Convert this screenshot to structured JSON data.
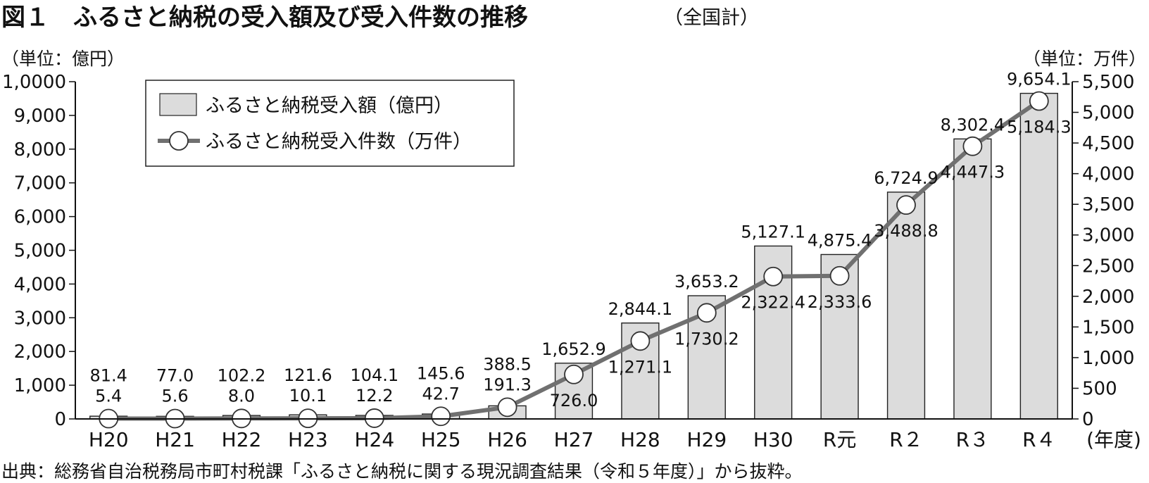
{
  "title": {
    "main": "図１　ふるさと納税の受入額及び受入件数の推移",
    "sub": "（全国計）"
  },
  "source": "出典：総務省自治税務局市町村税課「ふるさと納税に関する現況調査結果（令和５年度）」から抜粋。",
  "chart_data": {
    "type": "bar",
    "categories": [
      "H20",
      "H21",
      "H22",
      "H23",
      "H24",
      "H25",
      "H26",
      "H27",
      "H28",
      "H29",
      "H30",
      "R元",
      "R２",
      "R３",
      "R４"
    ],
    "x_suffix": "(年度)",
    "series": [
      {
        "name": "ふるさと納税受入額（億円）",
        "type": "bar",
        "axis": "left",
        "values": [
          81.4,
          77.0,
          102.2,
          121.6,
          104.1,
          145.6,
          388.5,
          1652.9,
          2844.1,
          3653.2,
          5127.1,
          4875.4,
          6724.9,
          8302.4,
          9654.1
        ],
        "labels": [
          "81.4",
          "77.0",
          "102.2",
          "121.6",
          "104.1",
          "145.6",
          "388.5",
          "1,652.9",
          "2,844.1",
          "3,653.2",
          "5,127.1",
          "4,875.4",
          "6,724.9",
          "8,302.4",
          "9,654.1"
        ]
      },
      {
        "name": "ふるさと納税受入件数（万件）",
        "type": "line",
        "axis": "right",
        "values": [
          5.4,
          5.6,
          8.0,
          10.1,
          12.2,
          42.7,
          191.3,
          726.0,
          1271.1,
          1730.2,
          2322.4,
          2333.6,
          3488.8,
          4447.3,
          5184.3
        ],
        "labels": [
          "5.4",
          "5.6",
          "8.0",
          "10.1",
          "12.2",
          "42.7",
          "191.3",
          "726.0",
          "1,271.1",
          "1,730.2",
          "2,322.4",
          "2,333.6",
          "3,488.8",
          "4,447.3",
          "5,184.3"
        ]
      }
    ],
    "left_axis": {
      "unit": "（単位：億円）",
      "ylim": [
        0,
        10000
      ],
      "ticks": [
        0,
        1000,
        2000,
        3000,
        4000,
        5000,
        6000,
        7000,
        8000,
        9000,
        10000
      ],
      "tick_labels": [
        "0",
        "1,000",
        "2,000",
        "3,000",
        "4,000",
        "5,000",
        "6,000",
        "7,000",
        "8,000",
        "9,000",
        "1,0000"
      ]
    },
    "right_axis": {
      "unit": "（単位：万件）",
      "ylim": [
        0,
        5500
      ],
      "ticks": [
        0,
        500,
        1000,
        1500,
        2000,
        2500,
        3000,
        3500,
        4000,
        4500,
        5000,
        5500
      ],
      "tick_labels": [
        "0",
        "500",
        "1,000",
        "1,500",
        "2,000",
        "2,500",
        "3,000",
        "3,500",
        "4,000",
        "4,500",
        "5,000",
        "5,500"
      ]
    },
    "grid": false,
    "legend_position": "top-left",
    "colors": {
      "bar_fill": "#dcdcdc",
      "bar_stroke": "#222222",
      "line": "#707070",
      "marker_fill": "#ffffff"
    }
  }
}
